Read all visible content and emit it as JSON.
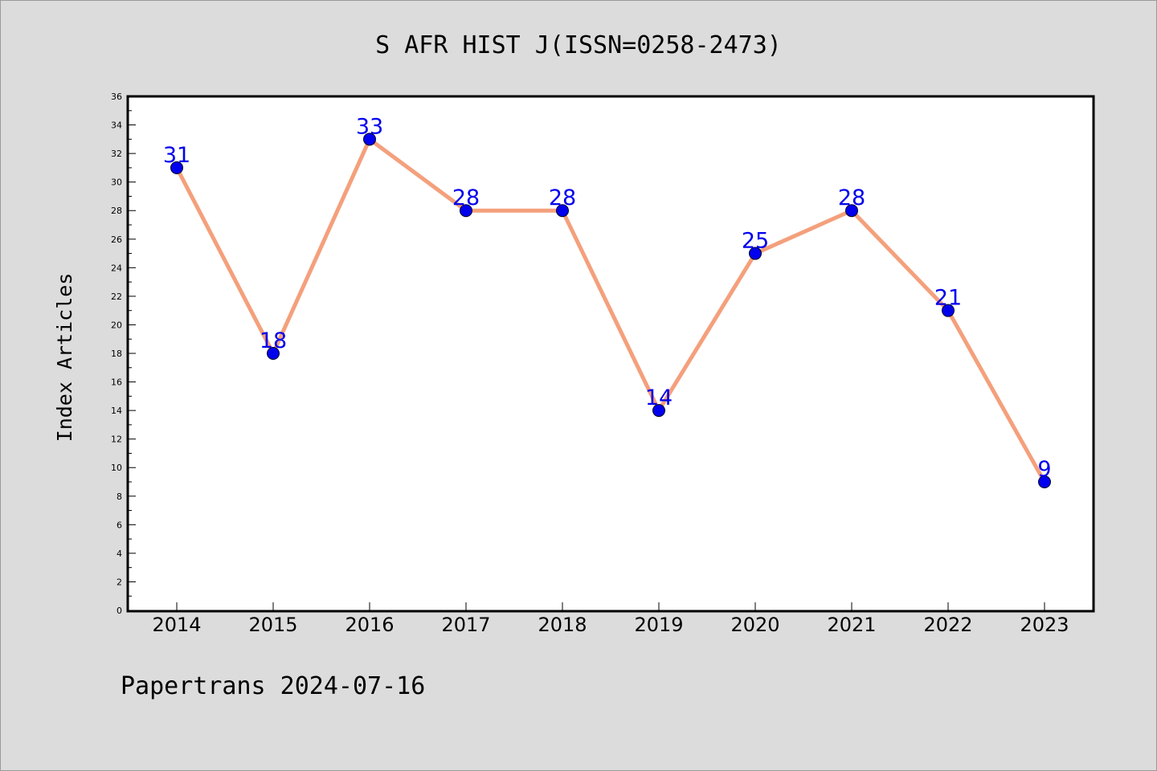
{
  "chart_data": {
    "type": "line",
    "title": "S AFR HIST J(ISSN=0258-2473)",
    "ylabel": "Index Articles",
    "xlabel": "",
    "categories": [
      "2014",
      "2015",
      "2016",
      "2017",
      "2018",
      "2019",
      "2020",
      "2021",
      "2022",
      "2023"
    ],
    "series": [
      {
        "values": [
          31,
          18,
          33,
          28,
          28,
          14,
          25,
          28,
          21,
          9
        ]
      }
    ],
    "ylim": [
      0,
      36
    ],
    "yticks": [
      0,
      2,
      4,
      6,
      8,
      10,
      12,
      14,
      16,
      18,
      20,
      22,
      24,
      26,
      28,
      30,
      32,
      34,
      36
    ],
    "grid": false,
    "colors": {
      "line": "#f4a07c",
      "marker": "#0000ee",
      "data_label": "#0000ee",
      "plot_background": "#ffffff",
      "page_background": "#dcdcdc"
    },
    "footer": "Papertrans 2024-07-16"
  }
}
